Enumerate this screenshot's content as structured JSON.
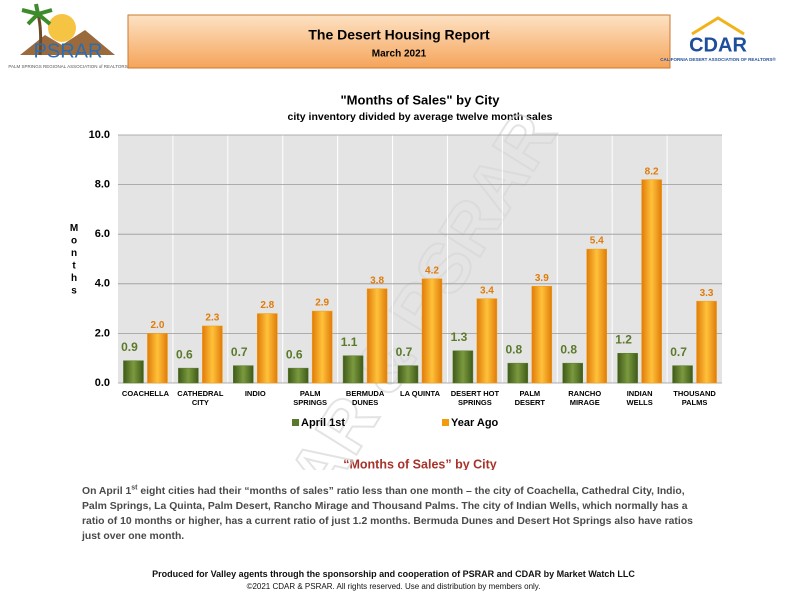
{
  "header": {
    "title": "The Desert Housing Report",
    "subtitle": "March 2021",
    "left_logo": {
      "name": "PSRAR",
      "tagline": "PALM SPRINGS REGIONAL ASSOCIATION of REALTORS"
    },
    "right_logo": {
      "name": "CDAR",
      "tagline": "CALIFORNIA DESERT ASSOCIATION OF REALTORS®"
    }
  },
  "watermark": "CDAR & PSRAR",
  "chart_data": {
    "type": "bar",
    "title": "\"Months of Sales\" by City",
    "subtitle": "city inventory divided by average twelve month sales",
    "y_label": "Months",
    "categories": [
      "COACHELLA",
      "CATHEDRAL\nCITY",
      "INDIO",
      "PALM\nSPRINGS",
      "BERMUDA\nDUNES",
      "LA QUINTA",
      "DESERT HOT\nSPRINGS",
      "PALM\nDESERT",
      "RANCHO\nMIRAGE",
      "INDIAN\nWELLS",
      "THOUSAND\nPALMS"
    ],
    "series": [
      {
        "name": "April 1st",
        "color": "#5a7a2a",
        "values": [
          0.9,
          0.6,
          0.7,
          0.6,
          1.1,
          0.7,
          1.3,
          0.8,
          0.8,
          1.2,
          0.7
        ],
        "value_labels": [
          "0.9",
          "0.6",
          "0.7",
          "0.6",
          "1.1",
          "0.7",
          "1.3",
          "0.8",
          "0.8",
          "1.2",
          "0.7"
        ],
        "label_color": "#5a7a2a"
      },
      {
        "name": "Year Ago",
        "color": "#f29b0f",
        "values": [
          2.0,
          2.3,
          2.8,
          2.9,
          3.8,
          4.2,
          3.4,
          3.9,
          5.4,
          8.2,
          3.3
        ],
        "value_labels": [
          "2.0",
          "2.3",
          "2.8",
          "2.9",
          "3.8",
          "4.2",
          "3.4",
          "3.9",
          "5.4",
          "8.2",
          "3.3"
        ],
        "label_color": "#e07b0a"
      }
    ],
    "ylim": [
      0,
      10
    ],
    "yticks": [
      {
        "value": 0,
        "label": "0.0"
      },
      {
        "value": 2,
        "label": "2.0"
      },
      {
        "value": 4,
        "label": "4.0"
      },
      {
        "value": 6,
        "label": "6.0"
      },
      {
        "value": 8,
        "label": "8.0"
      },
      {
        "value": 10,
        "label": "10.0"
      }
    ],
    "grid": true,
    "legend": "bottom"
  },
  "section": {
    "heading": "“Months of Sales” by City",
    "text_start": "On April 1",
    "text_sup": "st",
    "text_rest": " eight cities had their “months of sales” ratio less than one month – the city of Coachella, Cathedral City, Indio, Palm Springs, La Quinta, Palm Desert, Rancho Mirage and Thousand Palms. The city of Indian Wells, which normally has a ratio of 10 months or higher, has a current ratio of just 1.2 months. Bermuda Dunes and Desert Hot Springs also have ratios just over one month."
  },
  "footer": {
    "line1": "Produced for Valley agents through the sponsorship and cooperation of PSRAR and CDAR by Market Watch LLC",
    "line2": "©2021 CDAR & PSRAR.  All rights reserved.  Use and distribution by members only."
  }
}
